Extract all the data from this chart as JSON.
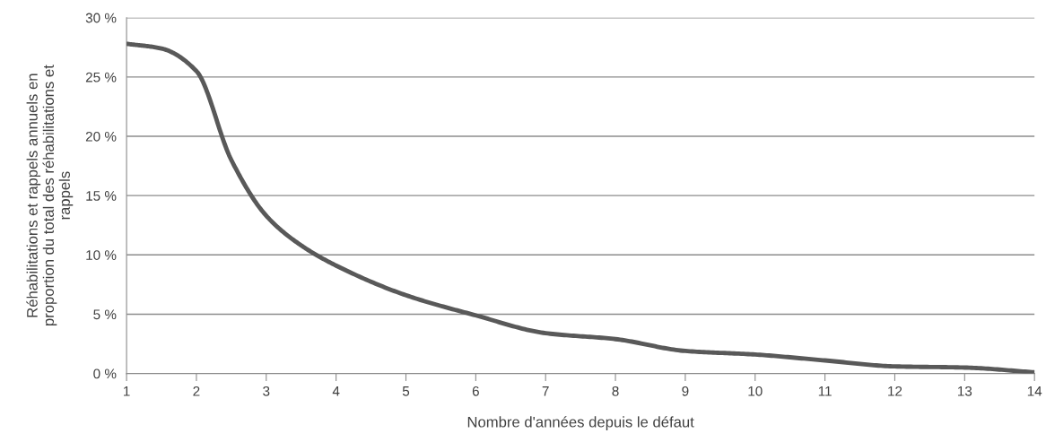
{
  "chart_data": {
    "type": "line",
    "xlabel": "Nombre d'années depuis le défaut",
    "ylabel": "Réhabilitations et rappels annuels en\nproportion du total des réhabilitations et\nrappels",
    "x": [
      1,
      1.5,
      2,
      2.5,
      3,
      3.5,
      4,
      5,
      6,
      7,
      8,
      9,
      10,
      11,
      12,
      13,
      14
    ],
    "series": [
      {
        "color": "#595959",
        "values": [
          27.8,
          27.4,
          25.5,
          18.0,
          13.3,
          10.8,
          9.1,
          6.6,
          4.9,
          3.4,
          2.9,
          1.9,
          1.6,
          1.1,
          0.6,
          0.5,
          0.1
        ]
      }
    ],
    "xlim": [
      1,
      14
    ],
    "xticks": [
      1,
      2,
      3,
      4,
      5,
      6,
      7,
      8,
      9,
      10,
      11,
      12,
      13,
      14
    ],
    "ylim": [
      0,
      30
    ],
    "yticks": [
      {
        "value": 0,
        "label": "0 %"
      },
      {
        "value": 5,
        "label": "5 %"
      },
      {
        "value": 10,
        "label": "10 %"
      },
      {
        "value": 15,
        "label": "15 %"
      },
      {
        "value": 20,
        "label": "20 %"
      },
      {
        "value": 25,
        "label": "25 %"
      },
      {
        "value": 30,
        "label": "30 %"
      }
    ],
    "grid": "y",
    "legend": false,
    "marker": "none",
    "line_style": "solid"
  }
}
